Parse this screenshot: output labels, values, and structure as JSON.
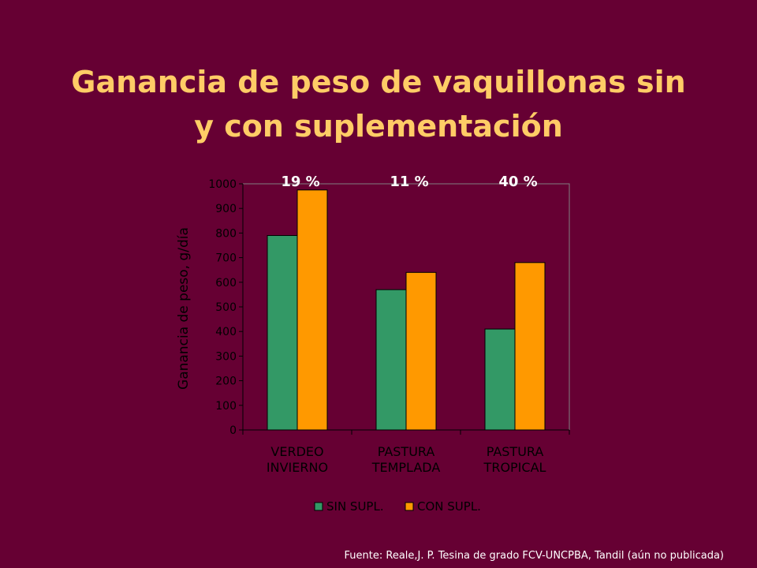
{
  "slide": {
    "title_line1": "Ganancia de peso de vaquillonas sin",
    "title_line2": "y con suplementación",
    "source": "Fuente: Reale,J. P. Tesina de grado FCV-UNCPBA, Tandil (aún no publicada)"
  },
  "chart_data": {
    "type": "bar",
    "categories": [
      [
        "VERDEO",
        "INVIERNO"
      ],
      [
        "PASTURA",
        "TEMPLADA"
      ],
      [
        "PASTURA",
        "TROPICAL"
      ]
    ],
    "series": [
      {
        "name": "SIN SUPL.",
        "values": [
          790,
          570,
          410
        ],
        "color": "#339966"
      },
      {
        "name": "CON SUPL.",
        "values": [
          975,
          640,
          680
        ],
        "color": "#ff9900"
      }
    ],
    "annotations": [
      "19 %",
      "11 %",
      "40 %"
    ],
    "ylabel": "Ganancia de peso, g/día",
    "ylim": [
      0,
      1000
    ],
    "yticks": [
      0,
      100,
      200,
      300,
      400,
      500,
      600,
      700,
      800,
      900,
      1000
    ],
    "grid": false,
    "legend": "bottom",
    "plot_background": "#660033",
    "axis_color": "#000000",
    "label_color": "#000000",
    "annotation_color": "#ffffff"
  }
}
